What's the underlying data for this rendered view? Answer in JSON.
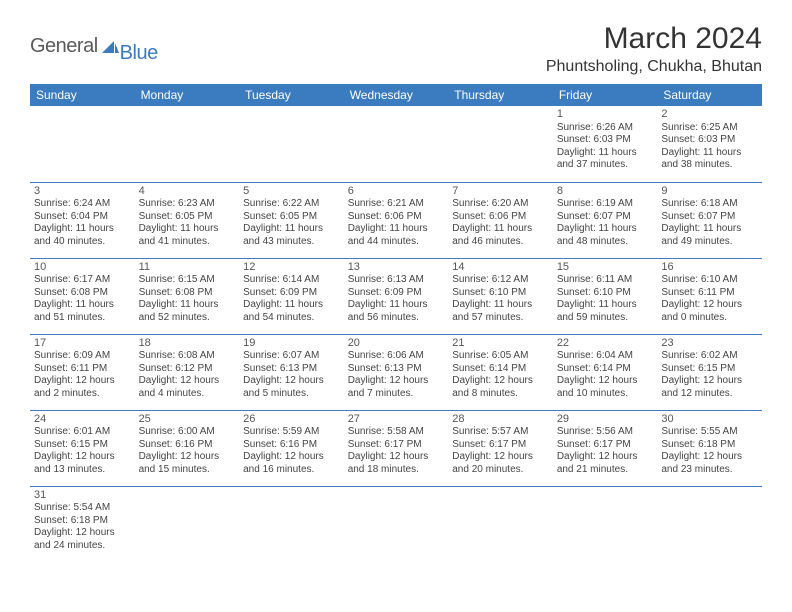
{
  "logo": {
    "part1": "General",
    "part2": "Blue"
  },
  "title": "March 2024",
  "location": "Phuntsholing, Chukha, Bhutan",
  "colors": {
    "header_bg": "#3b7bbf",
    "header_text": "#ffffff",
    "cell_border": "#3b7bbf",
    "text": "#444444",
    "title_text": "#333333"
  },
  "weekdays": [
    "Sunday",
    "Monday",
    "Tuesday",
    "Wednesday",
    "Thursday",
    "Friday",
    "Saturday"
  ],
  "weeks": [
    [
      null,
      null,
      null,
      null,
      null,
      {
        "day": "1",
        "sunrise": "Sunrise: 6:26 AM",
        "sunset": "Sunset: 6:03 PM",
        "daylight1": "Daylight: 11 hours",
        "daylight2": "and 37 minutes."
      },
      {
        "day": "2",
        "sunrise": "Sunrise: 6:25 AM",
        "sunset": "Sunset: 6:03 PM",
        "daylight1": "Daylight: 11 hours",
        "daylight2": "and 38 minutes."
      }
    ],
    [
      {
        "day": "3",
        "sunrise": "Sunrise: 6:24 AM",
        "sunset": "Sunset: 6:04 PM",
        "daylight1": "Daylight: 11 hours",
        "daylight2": "and 40 minutes."
      },
      {
        "day": "4",
        "sunrise": "Sunrise: 6:23 AM",
        "sunset": "Sunset: 6:05 PM",
        "daylight1": "Daylight: 11 hours",
        "daylight2": "and 41 minutes."
      },
      {
        "day": "5",
        "sunrise": "Sunrise: 6:22 AM",
        "sunset": "Sunset: 6:05 PM",
        "daylight1": "Daylight: 11 hours",
        "daylight2": "and 43 minutes."
      },
      {
        "day": "6",
        "sunrise": "Sunrise: 6:21 AM",
        "sunset": "Sunset: 6:06 PM",
        "daylight1": "Daylight: 11 hours",
        "daylight2": "and 44 minutes."
      },
      {
        "day": "7",
        "sunrise": "Sunrise: 6:20 AM",
        "sunset": "Sunset: 6:06 PM",
        "daylight1": "Daylight: 11 hours",
        "daylight2": "and 46 minutes."
      },
      {
        "day": "8",
        "sunrise": "Sunrise: 6:19 AM",
        "sunset": "Sunset: 6:07 PM",
        "daylight1": "Daylight: 11 hours",
        "daylight2": "and 48 minutes."
      },
      {
        "day": "9",
        "sunrise": "Sunrise: 6:18 AM",
        "sunset": "Sunset: 6:07 PM",
        "daylight1": "Daylight: 11 hours",
        "daylight2": "and 49 minutes."
      }
    ],
    [
      {
        "day": "10",
        "sunrise": "Sunrise: 6:17 AM",
        "sunset": "Sunset: 6:08 PM",
        "daylight1": "Daylight: 11 hours",
        "daylight2": "and 51 minutes."
      },
      {
        "day": "11",
        "sunrise": "Sunrise: 6:15 AM",
        "sunset": "Sunset: 6:08 PM",
        "daylight1": "Daylight: 11 hours",
        "daylight2": "and 52 minutes."
      },
      {
        "day": "12",
        "sunrise": "Sunrise: 6:14 AM",
        "sunset": "Sunset: 6:09 PM",
        "daylight1": "Daylight: 11 hours",
        "daylight2": "and 54 minutes."
      },
      {
        "day": "13",
        "sunrise": "Sunrise: 6:13 AM",
        "sunset": "Sunset: 6:09 PM",
        "daylight1": "Daylight: 11 hours",
        "daylight2": "and 56 minutes."
      },
      {
        "day": "14",
        "sunrise": "Sunrise: 6:12 AM",
        "sunset": "Sunset: 6:10 PM",
        "daylight1": "Daylight: 11 hours",
        "daylight2": "and 57 minutes."
      },
      {
        "day": "15",
        "sunrise": "Sunrise: 6:11 AM",
        "sunset": "Sunset: 6:10 PM",
        "daylight1": "Daylight: 11 hours",
        "daylight2": "and 59 minutes."
      },
      {
        "day": "16",
        "sunrise": "Sunrise: 6:10 AM",
        "sunset": "Sunset: 6:11 PM",
        "daylight1": "Daylight: 12 hours",
        "daylight2": "and 0 minutes."
      }
    ],
    [
      {
        "day": "17",
        "sunrise": "Sunrise: 6:09 AM",
        "sunset": "Sunset: 6:11 PM",
        "daylight1": "Daylight: 12 hours",
        "daylight2": "and 2 minutes."
      },
      {
        "day": "18",
        "sunrise": "Sunrise: 6:08 AM",
        "sunset": "Sunset: 6:12 PM",
        "daylight1": "Daylight: 12 hours",
        "daylight2": "and 4 minutes."
      },
      {
        "day": "19",
        "sunrise": "Sunrise: 6:07 AM",
        "sunset": "Sunset: 6:13 PM",
        "daylight1": "Daylight: 12 hours",
        "daylight2": "and 5 minutes."
      },
      {
        "day": "20",
        "sunrise": "Sunrise: 6:06 AM",
        "sunset": "Sunset: 6:13 PM",
        "daylight1": "Daylight: 12 hours",
        "daylight2": "and 7 minutes."
      },
      {
        "day": "21",
        "sunrise": "Sunrise: 6:05 AM",
        "sunset": "Sunset: 6:14 PM",
        "daylight1": "Daylight: 12 hours",
        "daylight2": "and 8 minutes."
      },
      {
        "day": "22",
        "sunrise": "Sunrise: 6:04 AM",
        "sunset": "Sunset: 6:14 PM",
        "daylight1": "Daylight: 12 hours",
        "daylight2": "and 10 minutes."
      },
      {
        "day": "23",
        "sunrise": "Sunrise: 6:02 AM",
        "sunset": "Sunset: 6:15 PM",
        "daylight1": "Daylight: 12 hours",
        "daylight2": "and 12 minutes."
      }
    ],
    [
      {
        "day": "24",
        "sunrise": "Sunrise: 6:01 AM",
        "sunset": "Sunset: 6:15 PM",
        "daylight1": "Daylight: 12 hours",
        "daylight2": "and 13 minutes."
      },
      {
        "day": "25",
        "sunrise": "Sunrise: 6:00 AM",
        "sunset": "Sunset: 6:16 PM",
        "daylight1": "Daylight: 12 hours",
        "daylight2": "and 15 minutes."
      },
      {
        "day": "26",
        "sunrise": "Sunrise: 5:59 AM",
        "sunset": "Sunset: 6:16 PM",
        "daylight1": "Daylight: 12 hours",
        "daylight2": "and 16 minutes."
      },
      {
        "day": "27",
        "sunrise": "Sunrise: 5:58 AM",
        "sunset": "Sunset: 6:17 PM",
        "daylight1": "Daylight: 12 hours",
        "daylight2": "and 18 minutes."
      },
      {
        "day": "28",
        "sunrise": "Sunrise: 5:57 AM",
        "sunset": "Sunset: 6:17 PM",
        "daylight1": "Daylight: 12 hours",
        "daylight2": "and 20 minutes."
      },
      {
        "day": "29",
        "sunrise": "Sunrise: 5:56 AM",
        "sunset": "Sunset: 6:17 PM",
        "daylight1": "Daylight: 12 hours",
        "daylight2": "and 21 minutes."
      },
      {
        "day": "30",
        "sunrise": "Sunrise: 5:55 AM",
        "sunset": "Sunset: 6:18 PM",
        "daylight1": "Daylight: 12 hours",
        "daylight2": "and 23 minutes."
      }
    ],
    [
      {
        "day": "31",
        "sunrise": "Sunrise: 5:54 AM",
        "sunset": "Sunset: 6:18 PM",
        "daylight1": "Daylight: 12 hours",
        "daylight2": "and 24 minutes."
      },
      null,
      null,
      null,
      null,
      null,
      null
    ]
  ]
}
